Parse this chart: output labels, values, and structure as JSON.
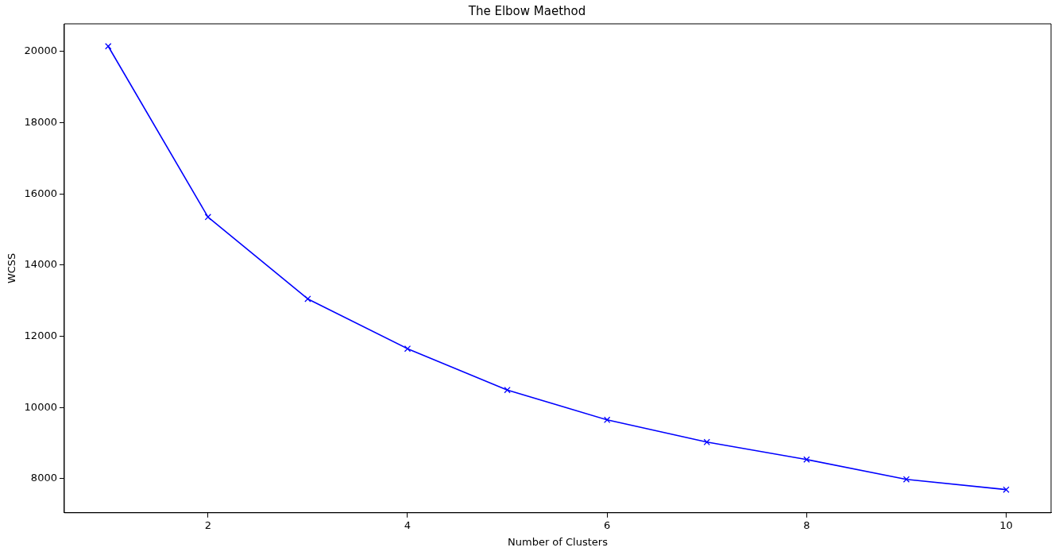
{
  "chart_data": {
    "type": "line",
    "title": "The Elbow Maethod",
    "xlabel": "Number of Clusters",
    "ylabel": "WCSS",
    "x": [
      1,
      2,
      3,
      4,
      5,
      6,
      7,
      8,
      9,
      10
    ],
    "series": [
      {
        "color": "#0000ff",
        "values": [
          20150,
          15350,
          13050,
          11650,
          10490,
          9650,
          9025,
          8535,
          7980,
          7690
        ]
      }
    ],
    "xlim": [
      0.56,
      10.45
    ],
    "xticks": [
      2,
      4,
      6,
      8,
      10
    ],
    "ylim": [
      7040,
      20780
    ],
    "yticks": [
      8000,
      10000,
      12000,
      14000,
      16000,
      18000,
      20000
    ],
    "grid": false,
    "legend": false,
    "marker": "cross",
    "line_style": "solid"
  }
}
